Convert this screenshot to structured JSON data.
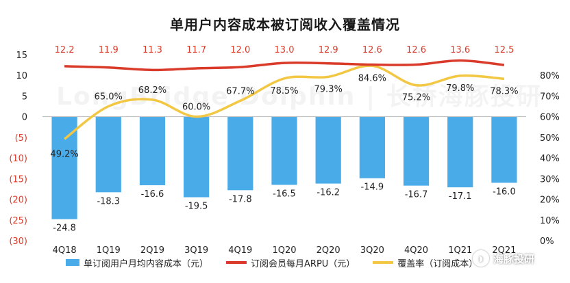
{
  "chart_data": {
    "title": "单用户内容成本被订阅收入覆盖情况",
    "type": "bar+line",
    "categories": [
      "4Q18",
      "1Q19",
      "2Q19",
      "3Q19",
      "4Q19",
      "1Q20",
      "2Q20",
      "3Q20",
      "4Q20",
      "1Q21",
      "2Q21"
    ],
    "y_left": {
      "ylim": [
        -30,
        15
      ],
      "ticks": [
        "15",
        "10",
        "5",
        "0",
        "(5)",
        "(10)",
        "(15)",
        "(20)",
        "(25)",
        "(30)"
      ],
      "tick_values": [
        15,
        10,
        5,
        0,
        -5,
        -10,
        -15,
        -20,
        -25,
        -30
      ]
    },
    "y_right": {
      "ylim": [
        0,
        90
      ],
      "ticks": [
        "80%",
        "70%",
        "60%",
        "50%",
        "40%",
        "30%",
        "20%",
        "10%",
        "0%"
      ],
      "tick_values": [
        80,
        70,
        60,
        50,
        40,
        30,
        20,
        10,
        0
      ]
    },
    "series": [
      {
        "name": "单订阅用户月均内容成本（元）",
        "type": "bar",
        "axis": "left",
        "color": "#4aabe9",
        "values": [
          -24.8,
          -18.3,
          -16.6,
          -19.5,
          -17.8,
          -16.5,
          -16.2,
          -14.9,
          -16.7,
          -17.1,
          -16.0
        ],
        "labels": [
          "-24.8",
          "-18.3",
          "-16.6",
          "-19.5",
          "-17.8",
          "-16.5",
          "-16.2",
          "-14.9",
          "-16.7",
          "-17.1",
          "-16.0"
        ]
      },
      {
        "name": "订阅会员每月ARPU（元）",
        "type": "line",
        "axis": "left",
        "color": "#d93a2a",
        "values": [
          12.2,
          11.9,
          11.3,
          11.7,
          12.0,
          13.0,
          12.9,
          12.6,
          12.6,
          13.6,
          12.5
        ],
        "labels": [
          "12.2",
          "11.9",
          "11.3",
          "11.7",
          "12.0",
          "13.0",
          "12.9",
          "12.6",
          "12.6",
          "13.6",
          "12.5"
        ]
      },
      {
        "name": "覆盖率（订阅成本）",
        "type": "line",
        "axis": "right",
        "color": "#f2c744",
        "values": [
          49.2,
          65.0,
          68.2,
          60.0,
          67.7,
          78.5,
          79.3,
          84.6,
          75.2,
          79.8,
          78.3
        ],
        "labels": [
          "49.2%",
          "65.0%",
          "68.2%",
          "60.0%",
          "67.7%",
          "78.5%",
          "79.3%",
          "84.6%",
          "75.2%",
          "79.8%",
          "78.3%"
        ]
      }
    ],
    "legend_position": "bottom"
  },
  "watermark": "LongBridge Dolphin | 长桥海豚投研",
  "brand": {
    "label": "海豚投研",
    "icon": "dolphin-icon"
  },
  "colors": {
    "bar": "#4aabe9",
    "arpu": "#d93a2a",
    "coverage": "#f2c744",
    "negative_tick": "#d93a2a"
  }
}
